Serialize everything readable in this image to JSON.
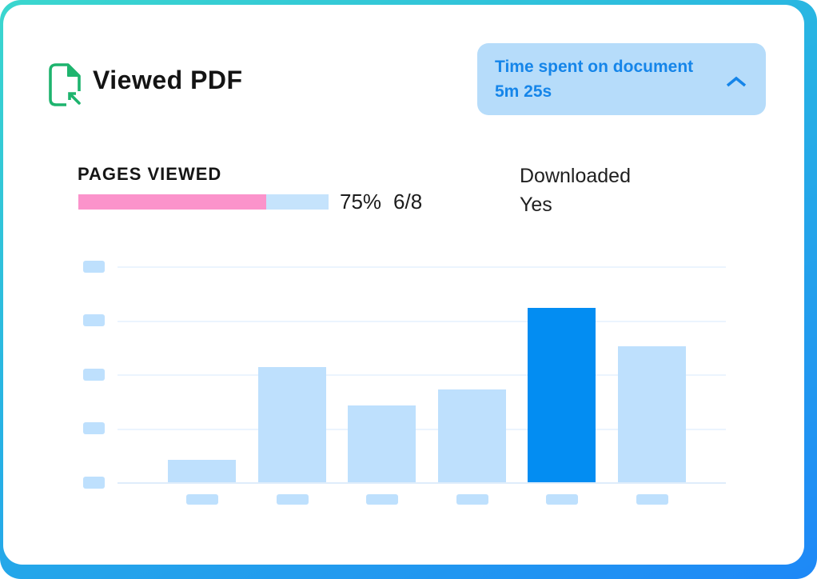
{
  "card": {
    "title": "Viewed PDF",
    "badge": {
      "label": "Time spent on document",
      "value": "5m 25s",
      "chevron_icon": "chevron-up"
    },
    "stats": {
      "pages_viewed_label": "PAGES VIEWED",
      "percent": "75%",
      "percent_value": 75,
      "fraction": "6/8",
      "downloaded_label": "Downloaded",
      "downloaded_value": "Yes"
    },
    "header_icon": "pdf-document-with-inward-arrow"
  },
  "chart_data": {
    "type": "bar",
    "title": "",
    "categories": [
      "",
      "",
      "",
      "",
      "",
      ""
    ],
    "values_pct_of_plot_height": [
      10.4,
      53.3,
      35.6,
      43.0,
      80.7,
      63.0
    ],
    "values_gridline_units": [
      0.41,
      2.13,
      1.42,
      1.72,
      3.23,
      2.52
    ],
    "ylim_units": [
      0,
      4
    ],
    "highlighted_bar_index": 4,
    "gridline_count": 5,
    "axis_tick_labels": "placeholder-blocks-no-text",
    "legend": "none",
    "grid": "horizontal-only"
  },
  "colors": {
    "teal": "#3bd7ce",
    "blue": "#1e88f7",
    "badge_bg": "#b6dcfa",
    "badge_text": "#1585e9",
    "pink": "#fb93cb",
    "progress_rest": "#c5e3fc",
    "bar": "#bee0fd",
    "bar_highlight": "#038df2",
    "grid": "#ebf4fe",
    "grid_base": "#dfedfb",
    "icon_green": "#1eb46e"
  }
}
